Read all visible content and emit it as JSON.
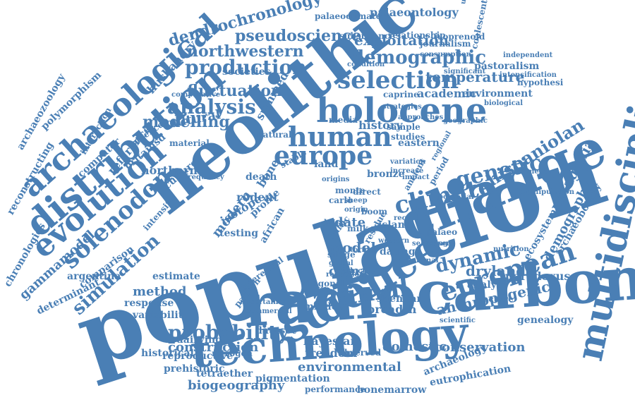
{
  "theme": {
    "word_color": "#4a7fb5",
    "background": "#ffffff"
  },
  "words": [
    "population",
    "radiocarbon",
    "neolithic",
    "change",
    "technology",
    "multidisciplinary",
    "science",
    "distribution",
    "holocene",
    "archaeological",
    "european",
    "animal",
    "evolution",
    "human",
    "europe",
    "selection",
    "probability",
    "climate",
    "genetic",
    "solenodon",
    "dynamic",
    "analysis",
    "production",
    "demographic",
    "hispaniolan",
    "northwestern",
    "dendrochronology",
    "pseudoscience",
    "exploitation",
    "temperature",
    "anthropogenic",
    "fluctuation",
    "modelling",
    "simulation",
    "conservation",
    "patagonia",
    "demography",
    "environmental",
    "biogeography",
    "pigmentation",
    "construction",
    "reproductive",
    "prehistoric",
    "tetraether",
    "bayesian",
    "domestic",
    "freedom",
    "midden",
    "dataset",
    "breadth",
    "shennan",
    "drylands",
    "paradoxus",
    "archaeobotany",
    "ecosystem",
    "archaeozoology",
    "polymorphism",
    "reconstructing",
    "chronologies",
    "gammamodel",
    "determinant",
    "argentina",
    "comparison",
    "method",
    "estimate",
    "response",
    "variability",
    "culture",
    "cultural",
    "modern",
    "date",
    "model",
    "climatic",
    "dating",
    "dairying",
    "historical",
    "nitrogen",
    "genealogy",
    "analyse",
    "archaeology",
    "eutrophication",
    "performance",
    "bonemarrow",
    "observed",
    "palaeoclimate",
    "palaeontology",
    "subsistence",
    "relationship",
    "isoprenoid",
    "journalism",
    "pastoralism",
    "academic",
    "environment",
    "caprine",
    "strategies",
    "societies",
    "husbandry",
    "northern",
    "reference",
    "britainsd",
    "computer",
    "interaction",
    "bronze",
    "history",
    "sample",
    "studies",
    "eastern",
    "media",
    "island",
    "land",
    "rodent",
    "bone",
    "isotope",
    "profile",
    "testing",
    "african",
    "death",
    "stable",
    "summed",
    "residue",
    "variation",
    "increase",
    "fracture",
    "scientific",
    "mammal",
    "condition",
    "significant",
    "independent",
    "intensification",
    "hypothesi",
    "biological",
    "sediment",
    "manipulation",
    "nutrition",
    "coalescent",
    "intensity",
    "material",
    "evidence",
    "frequency",
    "origin",
    "diagonal",
    "inferential",
    "global",
    "product",
    "pattern",
    "western",
    "regional",
    "ancient",
    "approaches",
    "geographic",
    "comparative",
    "consumption",
    "understanding",
    "uncertainty",
    "reduction",
    "commercial",
    "monte",
    "carlo",
    "boom",
    "torfing",
    "silage",
    "baltic",
    "milk",
    "dairy",
    "direct",
    "sheep",
    "natural",
    "period",
    "impact",
    "potential",
    "palaeo",
    "record",
    "present",
    "selecting",
    "origins"
  ]
}
